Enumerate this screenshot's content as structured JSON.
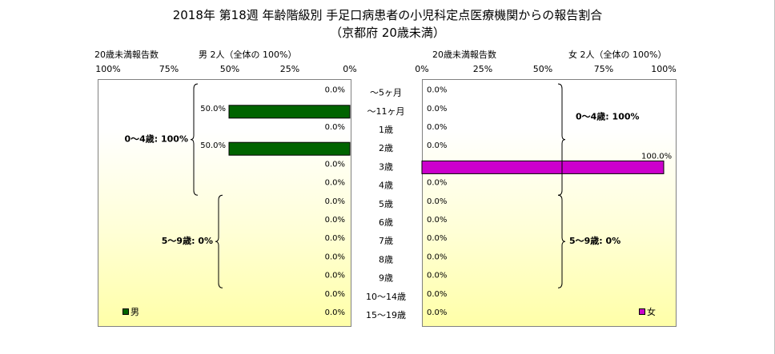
{
  "chart_data": {
    "type": "bar",
    "title": "2018年 第18週 年齢階級別 手足口病患者の小児科定点医療機関からの報告割合",
    "subtitle": "（京都府 20歳未満）",
    "categories": [
      "～5ヶ月",
      "～11ヶ月",
      "1歳",
      "2歳",
      "3歳",
      "4歳",
      "5歳",
      "6歳",
      "7歳",
      "8歳",
      "9歳",
      "10～14歳",
      "15～19歳"
    ],
    "xlim": [
      0,
      100
    ],
    "ticks": [
      "100%",
      "75%",
      "50%",
      "25%",
      "0%"
    ],
    "ticks_right": [
      "0%",
      "25%",
      "50%",
      "75%",
      "100%"
    ],
    "series": [
      {
        "name": "男",
        "color": "#006400",
        "header": "20歳未満報告数",
        "summary": "男  2人（全体の  100%）",
        "values": [
          0,
          50,
          0,
          50,
          0,
          0,
          0,
          0,
          0,
          0,
          0,
          0,
          0
        ],
        "labels": [
          "0.0%",
          "50.0%",
          "0.0%",
          "50.0%",
          "0.0%",
          "0.0%",
          "0.0%",
          "0.0%",
          "0.0%",
          "0.0%",
          "0.0%",
          "0.0%",
          "0.0%"
        ],
        "groups": [
          {
            "label": "0～4歳: 100%",
            "from": 0,
            "to": 5
          },
          {
            "label": "5～9歳: 0%",
            "from": 6,
            "to": 10
          }
        ]
      },
      {
        "name": "女",
        "color": "#cc00cc",
        "header": "20歳未満報告数",
        "summary": "女  2人（全体の  100%）",
        "values": [
          0,
          0,
          0,
          0,
          100,
          0,
          0,
          0,
          0,
          0,
          0,
          0,
          0
        ],
        "labels": [
          "0.0%",
          "0.0%",
          "0.0%",
          "0.0%",
          "100.0%",
          "0.0%",
          "0.0%",
          "0.0%",
          "0.0%",
          "0.0%",
          "0.0%",
          "0.0%",
          "0.0%"
        ],
        "groups": [
          {
            "label": "0～4歳: 100%",
            "from": 0,
            "to": 5
          },
          {
            "label": "5～9歳: 0%",
            "from": 6,
            "to": 10
          }
        ]
      }
    ],
    "grid": false
  }
}
